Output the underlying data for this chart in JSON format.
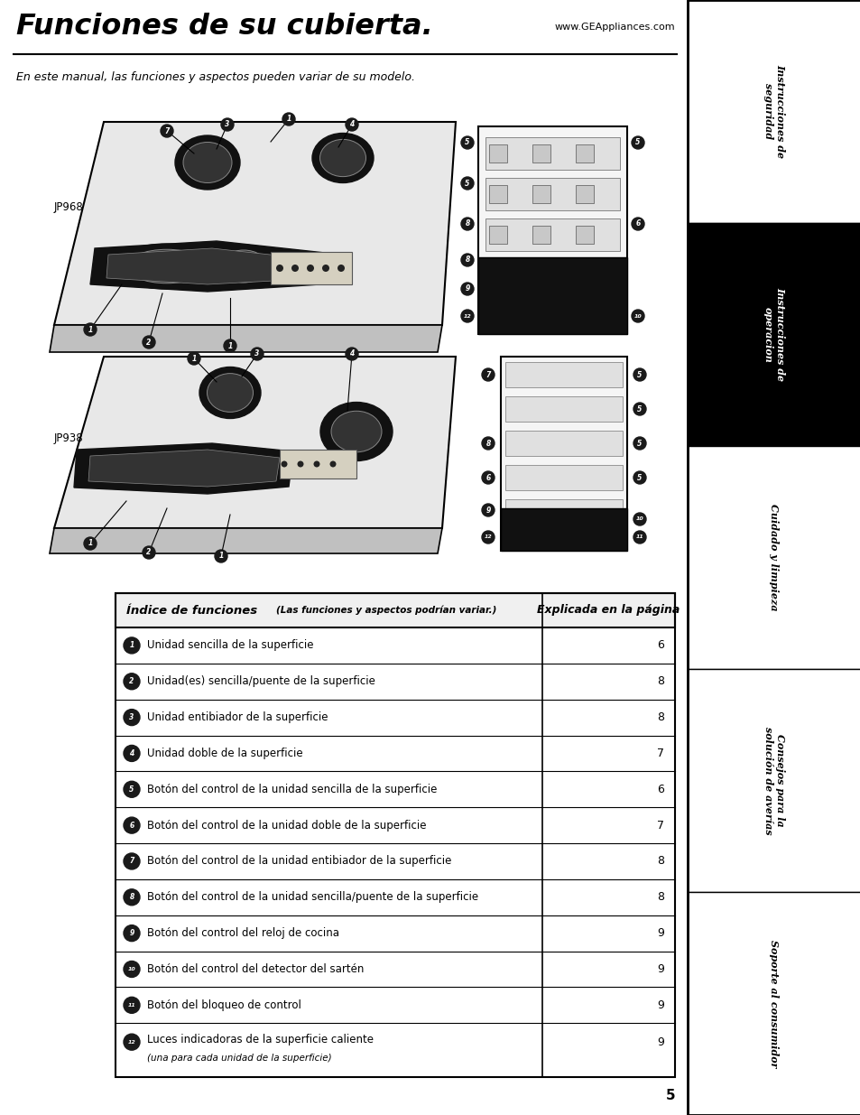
{
  "title": "Funciones de su cubierta.",
  "website": "www.GEAppliances.com",
  "subtitle": "En este manual, las funciones y aspectos pueden variar de su modelo.",
  "page_number": "5",
  "sidebar_texts": [
    {
      "text": "Instrucciones de\nseguridad",
      "bg": "#ffffff",
      "fg": "#000000"
    },
    {
      "text": "Instrucciones de\noperacion",
      "bg": "#000000",
      "fg": "#ffffff"
    },
    {
      "text": "Cuidado y limpieza",
      "bg": "#ffffff",
      "fg": "#000000"
    },
    {
      "text": "Consejos para la\nsolución de averías",
      "bg": "#ffffff",
      "fg": "#000000"
    },
    {
      "text": "Soporte al consumidor",
      "bg": "#ffffff",
      "fg": "#000000"
    }
  ],
  "table_rows": [
    {
      "num": "1",
      "text": "Unidad sencilla de la superficie",
      "text2": null,
      "page": "6"
    },
    {
      "num": "2",
      "text": "Unidad(es) sencilla/puente de la superficie",
      "text2": null,
      "page": "8"
    },
    {
      "num": "3",
      "text": "Unidad entibiador de la superficie",
      "text2": null,
      "page": "8"
    },
    {
      "num": "4",
      "text": "Unidad doble de la superficie",
      "text2": null,
      "page": "7"
    },
    {
      "num": "5",
      "text": "Botón del control de la unidad sencilla de la superficie",
      "text2": null,
      "page": "6"
    },
    {
      "num": "6",
      "text": "Botón del control de la unidad doble de la superficie",
      "text2": null,
      "page": "7"
    },
    {
      "num": "7",
      "text": "Botón del control de la unidad entibiador de la superficie",
      "text2": null,
      "page": "8"
    },
    {
      "num": "8",
      "text": "Botón del control de la unidad sencilla/puente de la superficie",
      "text2": null,
      "page": "8"
    },
    {
      "num": "9",
      "text": "Botón del control del reloj de cocina",
      "text2": null,
      "page": "9"
    },
    {
      "num": "10",
      "text": "Botón del control del detector del sartén",
      "text2": null,
      "page": "9"
    },
    {
      "num": "11",
      "text": "Botón del bloqueo de control",
      "text2": null,
      "page": "9"
    },
    {
      "num": "12",
      "text": "Luces indicadoras de la superficie caliente",
      "text2": "(una para cada unidad de la superficie)",
      "page": "9"
    }
  ]
}
